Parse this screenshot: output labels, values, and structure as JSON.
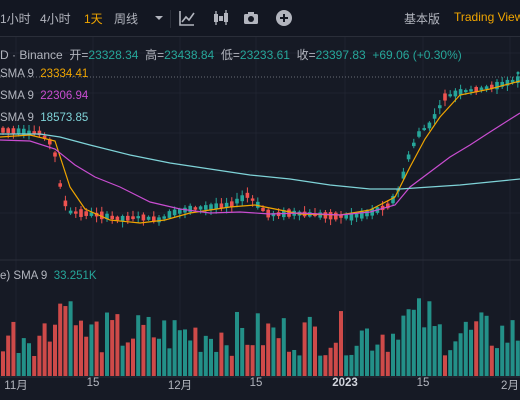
{
  "toolbar": {
    "timeframes": [
      "1小时",
      "4小时",
      "1天",
      "周线"
    ],
    "active_timeframe": "1天",
    "tools": [
      "indicators-icon",
      "candles-icon",
      "camera-icon",
      "add-icon"
    ],
    "basic_label": "基本版",
    "tradingview_label": "Trading View"
  },
  "legend": {
    "symbol": "D · Binance",
    "open_label": "开=",
    "open": "23328.34",
    "high_label": "高=",
    "high": "23438.84",
    "low_label": "低=",
    "low": "23233.61",
    "close_label": "收=",
    "close": "23397.83",
    "change": "+69.06 (+0.30%)"
  },
  "sma": [
    {
      "label": "SMA 9",
      "value": "23334.41",
      "color": "#f0a500"
    },
    {
      "label": "SMA 9",
      "value": "22306.94",
      "color": "#c94dd1"
    },
    {
      "label": "SMA 9",
      "value": "18573.85",
      "color": "#7fd3d8"
    }
  ],
  "volume": {
    "label": "e) SMA 9",
    "value": "33.251K",
    "color": "#26a69a"
  },
  "x_axis": [
    "11月",
    "15",
    "12月",
    "15",
    "2023",
    "15",
    "2月"
  ],
  "colors": {
    "up": "#26a69a",
    "down": "#ef5350"
  }
}
